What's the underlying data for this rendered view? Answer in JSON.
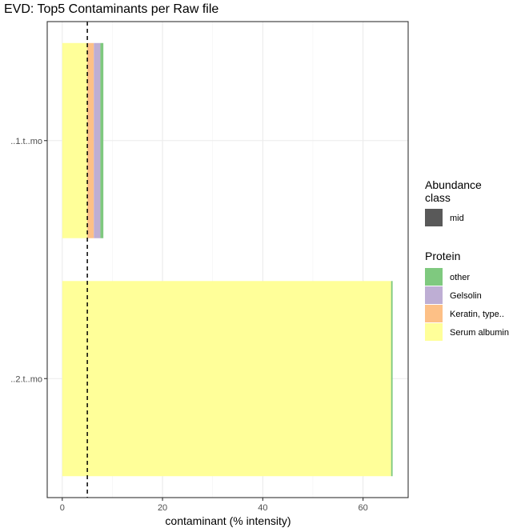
{
  "chart_data": {
    "type": "bar",
    "orientation": "horizontal",
    "stacked": true,
    "title": "EVD: Top5 Contaminants per Raw file",
    "xlabel": "contaminant (% intensity)",
    "ylabel": "",
    "xlim": [
      -3,
      69
    ],
    "x_ticks": [
      "0",
      "20",
      "40",
      "60"
    ],
    "x_tick_values": [
      0,
      20,
      40,
      60
    ],
    "categories": [
      "..1.t..mo",
      "..2.t..mo"
    ],
    "threshold": {
      "value": 5,
      "style": "dashed",
      "color": "#000000"
    },
    "series": [
      {
        "name": "Serum albumin",
        "color": "#FFFF99",
        "values": [
          5.0,
          65.6
        ]
      },
      {
        "name": "Keratin, type..",
        "color": "#FDC086",
        "values": [
          1.3,
          0.0
        ]
      },
      {
        "name": "Gelsolin",
        "color": "#BEAED4",
        "values": [
          1.3,
          0.0
        ]
      },
      {
        "name": "other",
        "color": "#7FC97F",
        "values": [
          0.6,
          0.3
        ]
      }
    ],
    "grid": true,
    "legend": {
      "position": "right",
      "abundance": {
        "title": "Abundance class",
        "title_lines": [
          "Abundance",
          "class"
        ],
        "items": [
          {
            "label": "mid",
            "color": "#595959"
          }
        ]
      },
      "protein": {
        "title": "Protein",
        "items": [
          {
            "label": "other",
            "color": "#7FC97F"
          },
          {
            "label": "Gelsolin",
            "color": "#BEAED4"
          },
          {
            "label": "Keratin, type..",
            "color": "#FDC086"
          },
          {
            "label": "Serum albumin",
            "color": "#FFFF99"
          }
        ]
      }
    }
  }
}
